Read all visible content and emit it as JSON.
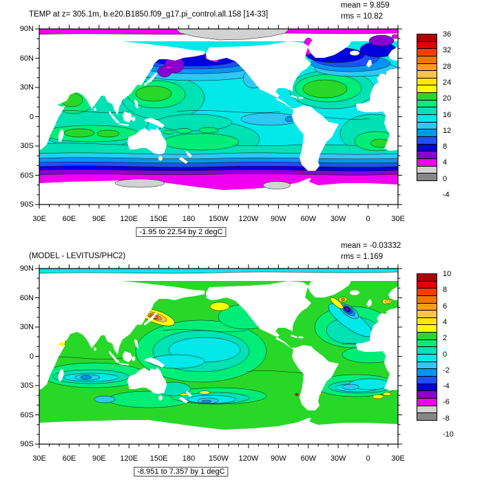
{
  "panel1": {
    "title": "TEMP at z= 305.1m, b.e20.B1850.f09_g17.pi_control.all.158 [14-33]",
    "mean": "mean = 9.859",
    "rms": "rms = 10.82",
    "range_note": "-1.95 to 22.54 by 2 degC",
    "colorbar_labels": [
      "36",
      "32",
      "28",
      "24",
      "20",
      "16",
      "12",
      "8",
      "4",
      "0",
      "-4"
    ]
  },
  "panel2": {
    "title": "(MODEL - LEVITUS/PHC2)",
    "mean": "mean = -0.03332",
    "rms": "rms = 1.169",
    "range_note": "-8.951 to 7.357 by 1 degC",
    "colorbar_labels": [
      "10",
      "8",
      "6",
      "4",
      "2",
      "0",
      "-2",
      "-4",
      "-6",
      "-8",
      "-10"
    ]
  },
  "axes": {
    "lon_labels": [
      "30E",
      "60E",
      "90E",
      "120E",
      "150E",
      "180",
      "150W",
      "120W",
      "90W",
      "60W",
      "30W",
      "0",
      "30E"
    ],
    "lat_labels": [
      "90N",
      "60N",
      "30N",
      "0",
      "30S",
      "60S",
      "90S"
    ]
  },
  "palette_top_to_bottom": [
    "#b00000",
    "#e10000",
    "#ff3c00",
    "#f07800",
    "#ff9b1e",
    "#ffc34d",
    "#ffe600",
    "#ffff00",
    "#28d828",
    "#00ee78",
    "#00e1b4",
    "#00e8e8",
    "#2ec8f5",
    "#0096f0",
    "#1e50ff",
    "#0000dd",
    "#8a00d2",
    "#f000f0",
    "#d2d2d2",
    "#878787"
  ],
  "chart_data": [
    {
      "type": "heatmap",
      "subtype": "filled-contour-world-map",
      "title": "TEMP at z= 305.1m, b.e20.B1850.f09_g17.pi_control.all.158 [14-33]",
      "stats": {
        "mean": 9.859,
        "rms": 10.82
      },
      "contour_levels_note": "-1.95 to 22.54 by 2 degC",
      "units": "degC",
      "colorbar_ticks": [
        36,
        32,
        28,
        24,
        20,
        16,
        12,
        8,
        4,
        0,
        -4
      ],
      "colorbar_range": [
        -4,
        36
      ],
      "colorbar_step": 2,
      "x_ticks": [
        "30E",
        "60E",
        "90E",
        "120E",
        "150E",
        "180",
        "150W",
        "120W",
        "90W",
        "60W",
        "30W",
        "0",
        "30E"
      ],
      "y_ticks": [
        "90N",
        "60N",
        "30N",
        "0",
        "30S",
        "60S",
        "90S"
      ],
      "projection": "cylindrical equidistant, lon 30E-30E (wrap), lat 90S-90N",
      "legend_position": "right",
      "description": "Model ocean potential temperature at 305.1 m depth; warm subtropical gyres (16-20 degC, green), tropics 12-16 degC (cyan/turquoise), cold subpolar North Pacific 2-8 degC (blue/purple), Arctic and Antarctic margins below 2 degC (magenta/gray)."
    },
    {
      "type": "heatmap",
      "subtype": "filled-contour-world-map",
      "title": "(MODEL - LEVITUS/PHC2)",
      "stats": {
        "mean": -0.03332,
        "rms": 1.169
      },
      "contour_levels_note": "-8.951 to 7.357 by 1 degC",
      "units": "degC",
      "colorbar_ticks": [
        10,
        8,
        6,
        4,
        2,
        0,
        -2,
        -4,
        -6,
        -8,
        -10
      ],
      "colorbar_range": [
        -10,
        10
      ],
      "colorbar_step": 1,
      "x_ticks": [
        "30E",
        "60E",
        "90E",
        "120E",
        "150E",
        "180",
        "150W",
        "120W",
        "90W",
        "60W",
        "30W",
        "0",
        "30E"
      ],
      "y_ticks": [
        "90N",
        "60N",
        "30N",
        "0",
        "30S",
        "60S",
        "90S"
      ],
      "projection": "cylindrical equidistant, lon 30E-30E (wrap), lat 90S-90N",
      "legend_position": "right",
      "description": "Model minus Levitus/PHC2 climatology; mostly 0 to +2 degC (greens), -1 to -2 degC in central Pacific (turquoise/cyan), warm bias +3 to +7 degC in Kuroshio (orange), strong cold bias to -8 degC at Gulf Stream (purple bullseye)."
    }
  ]
}
